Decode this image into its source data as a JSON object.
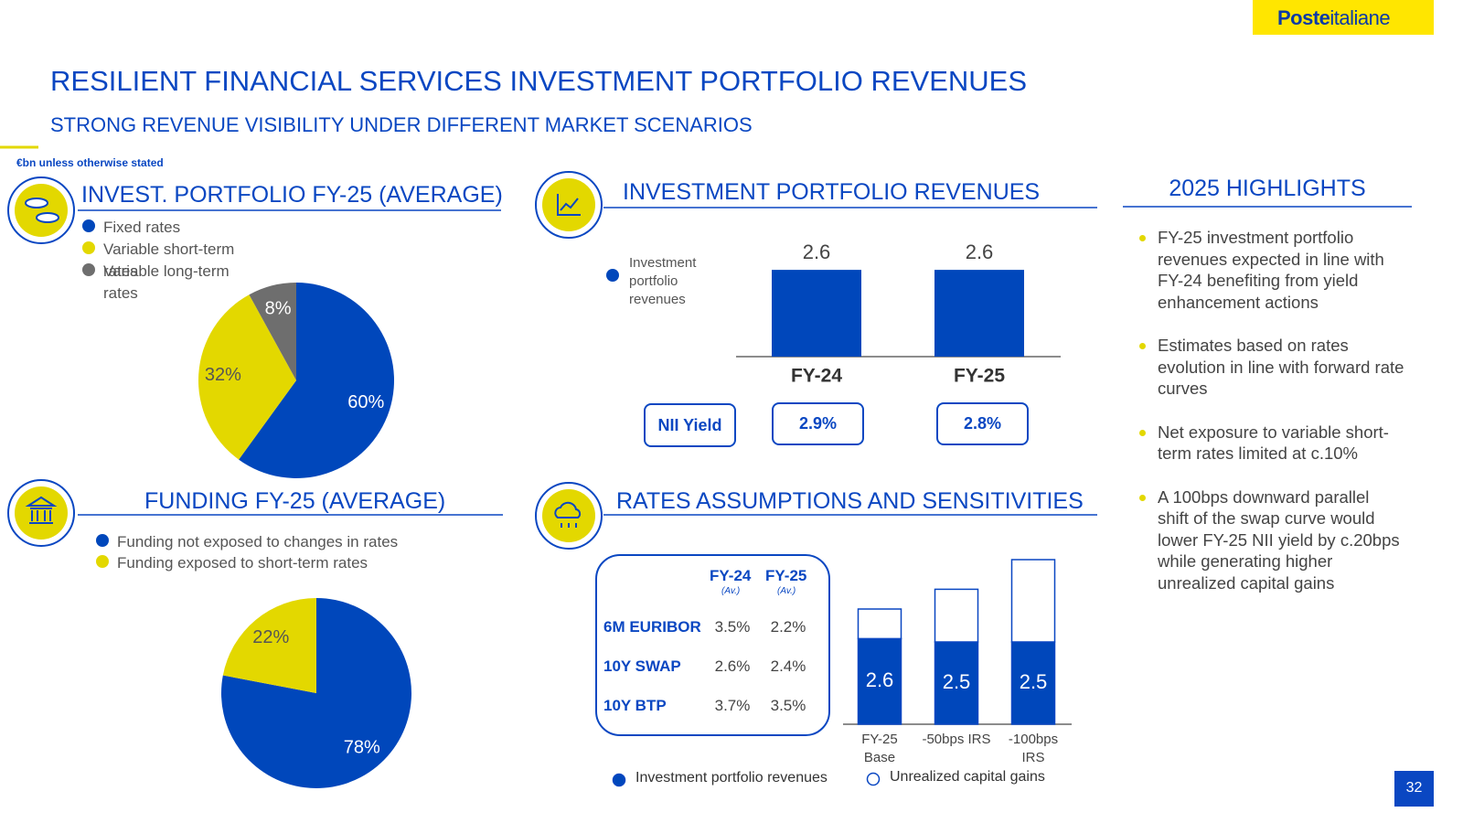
{
  "header": {
    "logo": {
      "bold": "Poste",
      "light": "italiane"
    },
    "title": "RESILIENT FINANCIAL SERVICES INVESTMENT PORTFOLIO REVENUES",
    "subtitle": "STRONG REVENUE VISIBILITY UNDER DIFFERENT MARKET SCENARIOS",
    "unit_note": "€bn unless otherwise stated"
  },
  "chart_data": [
    {
      "type": "pie",
      "title": "INVEST. PORTFOLIO FY-25 (AVERAGE)",
      "categories": [
        "Fixed rates",
        "Variable short-term rates",
        "Variable long-term rates"
      ],
      "values": [
        60,
        32,
        8
      ],
      "value_labels": [
        "60%",
        "32%",
        "8%"
      ],
      "colors": [
        "#0047bb",
        "#e3d800",
        "#6e6e6e"
      ]
    },
    {
      "type": "bar",
      "title": "INVESTMENT PORTFOLIO REVENUES",
      "categories": [
        "FY-24",
        "FY-25"
      ],
      "series": [
        {
          "name": "Investment portfolio revenues",
          "color": "#0047bb",
          "values": [
            2.6,
            2.6
          ]
        }
      ]
    },
    {
      "type": "pie",
      "title": "FUNDING FY-25 (AVERAGE)",
      "categories": [
        "Funding not exposed to changes in rates",
        "Funding exposed to short-term rates"
      ],
      "values": [
        78,
        22
      ],
      "value_labels": [
        "78%",
        "22%"
      ],
      "colors": [
        "#0047bb",
        "#e3d800"
      ]
    },
    {
      "type": "stacked_bar",
      "title": "RATES ASSUMPTIONS AND SENSITIVITIES",
      "categories": [
        "FY-25 Base",
        "-50bps IRS",
        "-100bps IRS"
      ],
      "series": [
        {
          "name": "Investment portfolio revenues",
          "color": "#0047bb",
          "values": [
            2.6,
            2.5,
            2.5
          ]
        },
        {
          "name": "Unrealized capital gains",
          "color": "#ffffff",
          "values": [
            0.9,
            1.6,
            2.5
          ]
        }
      ]
    }
  ],
  "nii_yield": {
    "label": "NII Yield",
    "values": [
      "2.9%",
      "2.8%"
    ]
  },
  "rates_table": {
    "columns": [
      "FY-24",
      "FY-25"
    ],
    "column_notes": [
      "(Av.)",
      "(Av.)"
    ],
    "rows": [
      [
        "6M EURIBOR",
        "3.5%",
        "2.2%"
      ],
      [
        "10Y SWAP",
        "2.6%",
        "2.4%"
      ],
      [
        "10Y BTP",
        "3.7%",
        "3.5%"
      ]
    ]
  },
  "highlights": {
    "title": "2025 HIGHLIGHTS",
    "items": [
      "FY-25 investment portfolio revenues expected in line with FY-24 benefiting from yield enhancement actions",
      "Estimates based on rates evolution in line with forward rate curves",
      "Net exposure to variable short-term rates limited at c.10%",
      "A 100bps downward parallel shift of the swap curve would lower FY-25 NII yield by c.20bps while generating higher unrealized capital gains"
    ]
  },
  "page_number": "32"
}
